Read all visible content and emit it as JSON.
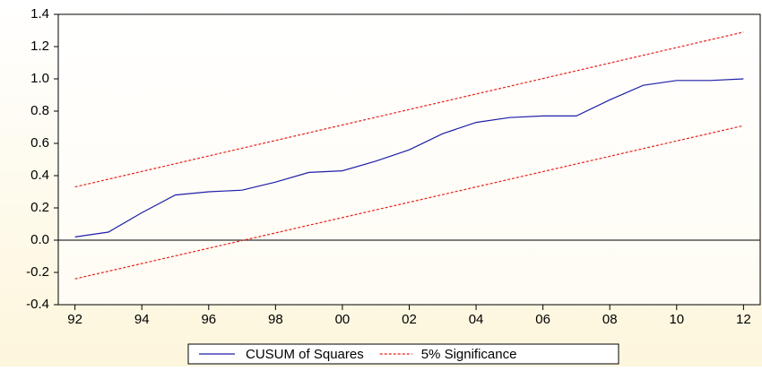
{
  "chart_data": {
    "type": "line",
    "x": [
      1992,
      1993,
      1994,
      1995,
      1996,
      1997,
      1998,
      1999,
      2000,
      2001,
      2002,
      2003,
      2004,
      2005,
      2006,
      2007,
      2008,
      2009,
      2010,
      2011,
      2012
    ],
    "series": [
      {
        "name": "CUSUM of Squares",
        "color": "#1f1fa8",
        "values": [
          0.02,
          0.05,
          0.17,
          0.28,
          0.3,
          0.31,
          0.36,
          0.42,
          0.43,
          0.49,
          0.56,
          0.66,
          0.73,
          0.76,
          0.77,
          0.77,
          0.87,
          0.96,
          0.99,
          0.99,
          1.0
        ]
      }
    ],
    "significance_bands": {
      "name": "5% Significance",
      "color": "#e8211b",
      "upper": [
        0.33,
        0.378,
        0.426,
        0.474,
        0.522,
        0.57,
        0.618,
        0.666,
        0.714,
        0.762,
        0.81,
        0.858,
        0.906,
        0.954,
        1.002,
        1.05,
        1.098,
        1.146,
        1.194,
        1.242,
        1.29
      ],
      "lower": [
        -0.24,
        -0.1925,
        -0.145,
        -0.0975,
        -0.05,
        -0.0025,
        0.045,
        0.0925,
        0.14,
        0.1875,
        0.235,
        0.2825,
        0.33,
        0.3775,
        0.425,
        0.4725,
        0.52,
        0.5675,
        0.615,
        0.6625,
        0.71
      ]
    },
    "xlim": [
      1991.5,
      2012.5
    ],
    "xticks": [
      {
        "value": 1992,
        "label": "92"
      },
      {
        "value": 1994,
        "label": "94"
      },
      {
        "value": 1996,
        "label": "96"
      },
      {
        "value": 1998,
        "label": "98"
      },
      {
        "value": 2000,
        "label": "00"
      },
      {
        "value": 2002,
        "label": "02"
      },
      {
        "value": 2004,
        "label": "04"
      },
      {
        "value": 2006,
        "label": "06"
      },
      {
        "value": 2008,
        "label": "08"
      },
      {
        "value": 2010,
        "label": "10"
      },
      {
        "value": 2012,
        "label": "12"
      }
    ],
    "ylim": [
      -0.4,
      1.4
    ],
    "yticks": [
      1.4,
      1.2,
      {
        "value": 1,
        "label": "1.0"
      },
      0.8,
      0.6,
      0.4,
      0.2,
      {
        "value": 0,
        "label": "0.0"
      },
      -0.2,
      -0.4
    ],
    "zero_line": true
  }
}
